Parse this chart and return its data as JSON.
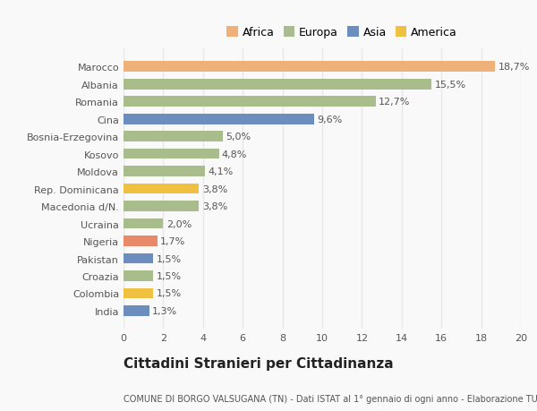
{
  "categories": [
    "India",
    "Colombia",
    "Croazia",
    "Pakistan",
    "Nigeria",
    "Ucraina",
    "Macedonia d/N.",
    "Rep. Dominicana",
    "Moldova",
    "Kosovo",
    "Bosnia-Erzegovina",
    "Cina",
    "Romania",
    "Albania",
    "Marocco"
  ],
  "values": [
    1.3,
    1.5,
    1.5,
    1.5,
    1.7,
    2.0,
    3.8,
    3.8,
    4.1,
    4.8,
    5.0,
    9.6,
    12.7,
    15.5,
    18.7
  ],
  "labels": [
    "1,3%",
    "1,5%",
    "1,5%",
    "1,5%",
    "1,7%",
    "2,0%",
    "3,8%",
    "3,8%",
    "4,1%",
    "4,8%",
    "5,0%",
    "9,6%",
    "12,7%",
    "15,5%",
    "18,7%"
  ],
  "colors": [
    "#6c8ebf",
    "#f0c040",
    "#a8bc8c",
    "#6c8ebf",
    "#e8896a",
    "#a8bc8c",
    "#a8bc8c",
    "#f0c040",
    "#a8bc8c",
    "#a8bc8c",
    "#a8bc8c",
    "#6c8ebf",
    "#a8bc8c",
    "#a8bc8c",
    "#f0b07a"
  ],
  "legend_labels": [
    "Africa",
    "Europa",
    "Asia",
    "America"
  ],
  "legend_colors": [
    "#f0b07a",
    "#a8bc8c",
    "#6c8ebf",
    "#f0c040"
  ],
  "title": "Cittadini Stranieri per Cittadinanza",
  "subtitle": "COMUNE DI BORGO VALSUGANA (TN) - Dati ISTAT al 1° gennaio di ogni anno - Elaborazione TUTTITALIA.IT",
  "xlim": [
    0,
    20
  ],
  "xticks": [
    0,
    2,
    4,
    6,
    8,
    10,
    12,
    14,
    16,
    18,
    20
  ],
  "background_color": "#f9f9f9",
  "grid_color": "#e8e8e8",
  "bar_height": 0.6,
  "label_fontsize": 8,
  "tick_fontsize": 8,
  "legend_fontsize": 9,
  "title_fontsize": 11,
  "subtitle_fontsize": 7
}
